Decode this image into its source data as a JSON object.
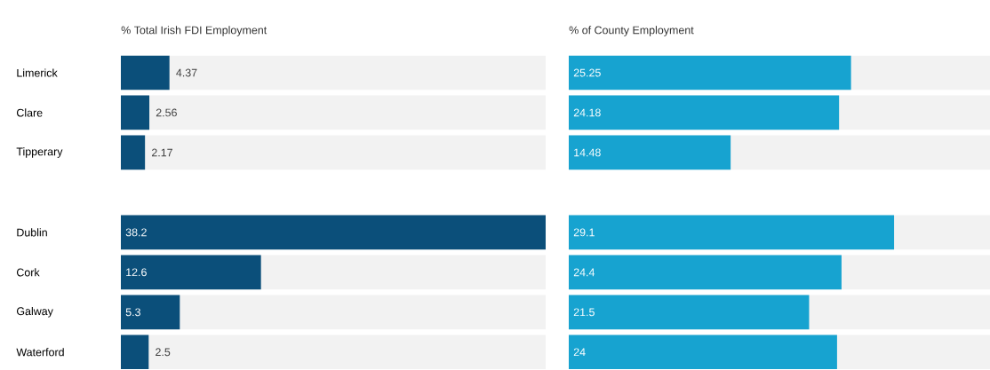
{
  "chart_data": [
    {
      "type": "bar",
      "orientation": "horizontal",
      "title": "% Total Irish FDI Employment",
      "categories": [
        "Limerick",
        "Clare",
        "Tipperary",
        null,
        "Dublin",
        "Cork",
        "Galway",
        "Waterford"
      ],
      "values": [
        4.37,
        2.56,
        2.17,
        null,
        38.2,
        12.6,
        5.3,
        2.5
      ],
      "color": "#0b4f7a",
      "xlim": [
        0,
        38.2
      ],
      "data_labels": true,
      "tick_labels": "y"
    },
    {
      "type": "bar",
      "orientation": "horizontal",
      "title": "% of County Employment",
      "categories": [
        null,
        null,
        null,
        null,
        null,
        null,
        null,
        null
      ],
      "values": [
        25.25,
        24.18,
        14.48,
        null,
        29.1,
        24.4,
        21.5,
        24
      ],
      "color": "#17a3d0",
      "xlim": [
        0,
        38
      ],
      "data_labels": true
    }
  ]
}
